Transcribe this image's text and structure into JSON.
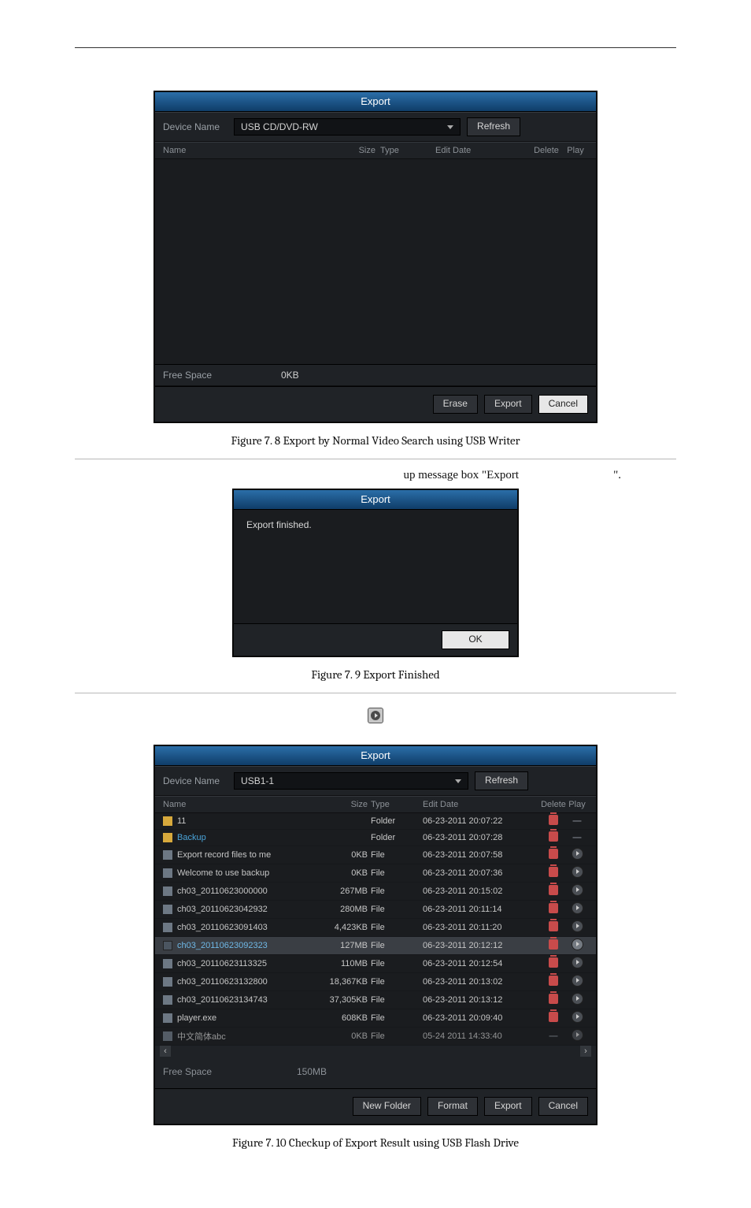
{
  "figure1": {
    "win_title": "Export",
    "device_label": "Device Name",
    "device_value": "USB CD/DVD-RW",
    "refresh": "Refresh",
    "cols": {
      "name": "Name",
      "size": "Size",
      "type": "Type",
      "edit": "Edit Date",
      "delete": "Delete",
      "play": "Play"
    },
    "free_label": "Free Space",
    "free_value": "0KB",
    "erase": "Erase",
    "export": "Export",
    "cancel": "Cancel",
    "caption": "Figure 7. 8 Export by Normal Video Search using USB Writer"
  },
  "quote": {
    "main": "up message box \"Export",
    "end": "\"."
  },
  "figure2": {
    "win_title": "Export",
    "msg": "Export finished.",
    "ok": "OK",
    "caption": "Figure 7. 9  Export Finished"
  },
  "figure3": {
    "win_title": "Export",
    "device_label": "Device Name",
    "device_value": "USB1-1",
    "refresh": "Refresh",
    "cols": {
      "name": "Name",
      "size": "Size",
      "type": "Type",
      "edit": "Edit Date",
      "delete": "Delete",
      "play": "Play"
    },
    "rows": [
      {
        "icon": "folder",
        "name": "11",
        "size": "",
        "type": "Folder",
        "date": "06-23-2011 20:07:22",
        "del": true,
        "play": false
      },
      {
        "icon": "folder",
        "name": "Backup",
        "size": "",
        "type": "Folder",
        "date": "06-23-2011 20:07:28",
        "del": true,
        "play": false,
        "name_color": "#4aa3d8"
      },
      {
        "icon": "file",
        "name": "Export record files to me",
        "size": "0KB",
        "type": "File",
        "date": "06-23-2011 20:07:58",
        "del": true,
        "play": true
      },
      {
        "icon": "file",
        "name": "Welcome to use backup",
        "size": "0KB",
        "type": "File",
        "date": "06-23-2011 20:07:36",
        "del": true,
        "play": true
      },
      {
        "icon": "file",
        "name": "ch03_20110623000000",
        "size": "267MB",
        "type": "File",
        "date": "06-23-2011 20:15:02",
        "del": true,
        "play": true
      },
      {
        "icon": "file",
        "name": "ch03_20110623042932",
        "size": "280MB",
        "type": "File",
        "date": "06-23-2011 20:11:14",
        "del": true,
        "play": true
      },
      {
        "icon": "file",
        "name": "ch03_20110623091403",
        "size": "4,423KB",
        "type": "File",
        "date": "06-23-2011 20:11:20",
        "del": true,
        "play": true
      },
      {
        "icon": "check",
        "name": "ch03_20110623092323",
        "size": "127MB",
        "type": "File",
        "date": "06-23-2011 20:12:12",
        "del": true,
        "play": true,
        "selected": true,
        "name_color": "#6fb8e6"
      },
      {
        "icon": "file",
        "name": "ch03_20110623113325",
        "size": "110MB",
        "type": "File",
        "date": "06-23-2011 20:12:54",
        "del": true,
        "play": true
      },
      {
        "icon": "file",
        "name": "ch03_20110623132800",
        "size": "18,367KB",
        "type": "File",
        "date": "06-23-2011 20:13:02",
        "del": true,
        "play": true
      },
      {
        "icon": "file",
        "name": "ch03_20110623134743",
        "size": "37,305KB",
        "type": "File",
        "date": "06-23-2011 20:13:12",
        "del": true,
        "play": true
      },
      {
        "icon": "file",
        "name": "player.exe",
        "size": "608KB",
        "type": "File",
        "date": "06-23-2011 20:09:40",
        "del": true,
        "play": true
      },
      {
        "icon": "file",
        "name": "中文简体abc",
        "size": "0KB",
        "type": "File",
        "date": "05-24 2011 14:33:40",
        "del": false,
        "play": true,
        "dim": true
      }
    ],
    "free_label": "Free Space",
    "free_value": "150MB",
    "new_folder": "New Folder",
    "format": "Format",
    "export": "Export",
    "cancel": "Cancel",
    "caption": "Figure 7. 10  Checkup of Export Result using USB Flash Drive"
  }
}
